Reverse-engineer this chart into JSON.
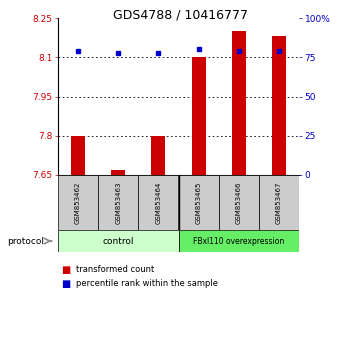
{
  "title": "GDS4788 / 10416777",
  "samples": [
    "GSM853462",
    "GSM853463",
    "GSM853464",
    "GSM853465",
    "GSM853466",
    "GSM853467"
  ],
  "transformed_counts": [
    7.8,
    7.67,
    7.8,
    8.1,
    8.2,
    8.18
  ],
  "percentile_ranks": [
    79,
    78,
    78,
    80,
    79,
    79
  ],
  "ylim_left": [
    7.65,
    8.25
  ],
  "ylim_right": [
    0,
    100
  ],
  "yticks_left": [
    7.65,
    7.8,
    7.95,
    8.1,
    8.25
  ],
  "ytick_labels_left": [
    "7.65",
    "7.8",
    "7.95",
    "8.1",
    "8.25"
  ],
  "yticks_right": [
    0,
    25,
    50,
    75,
    100
  ],
  "ytick_labels_right": [
    "0",
    "25",
    "50",
    "75",
    "100%"
  ],
  "bar_color": "#cc0000",
  "percentile_color": "#0000cc",
  "bar_width": 0.35,
  "background_color": "#ffffff",
  "axis_left_color": "#cc0000",
  "axis_right_color": "#0000cc",
  "legend_items": [
    {
      "label": "transformed count",
      "color": "#cc0000"
    },
    {
      "label": "percentile rank within the sample",
      "color": "#0000cc"
    }
  ],
  "protocol_label": "protocol",
  "sample_bg_color": "#cccccc",
  "group1_color": "#ccffcc",
  "group2_color": "#66ee66",
  "group_divider_idx": 3,
  "dotted_gridlines": [
    7.8,
    7.95,
    8.1
  ],
  "control_label": "control",
  "overexpr_label": "FBxl110 overexpression"
}
